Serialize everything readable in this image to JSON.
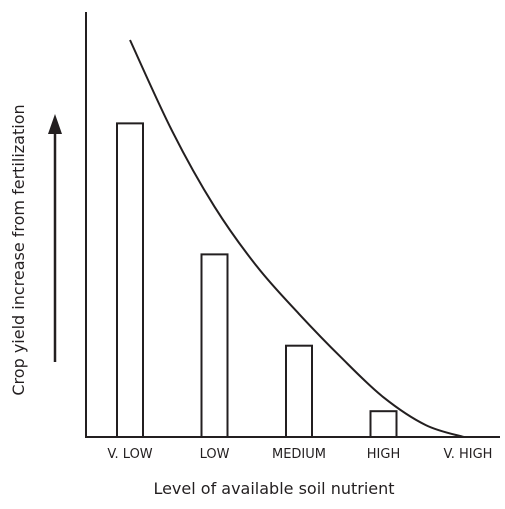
{
  "chart_data": {
    "type": "bar",
    "title": "",
    "xlabel": "Level of available soil nutrient",
    "ylabel": "Crop yield increase from fertilization",
    "categories": [
      "V. LOW",
      "LOW",
      "MEDIUM",
      "HIGH",
      "V. HIGH"
    ],
    "values": [
      79,
      46,
      23,
      6.5,
      null
    ],
    "ylim": [
      0,
      100
    ],
    "trend_curve": {
      "x": [
        0,
        0.5,
        1,
        1.5,
        2,
        2.5,
        3,
        3.5,
        3.95
      ],
      "y": [
        100,
        77,
        58,
        43,
        31,
        20,
        10,
        3,
        0
      ]
    },
    "grid": false,
    "legend": "none",
    "y_axis_arrow": true,
    "colors": {
      "ink": "#231f20",
      "bar_fill": "#ffffff"
    }
  }
}
